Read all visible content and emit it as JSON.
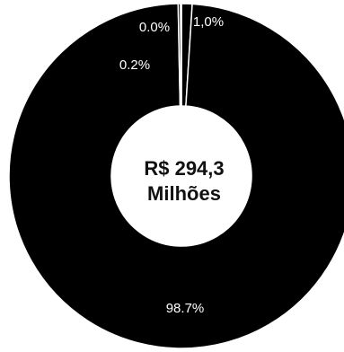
{
  "chart_data": {
    "type": "pie",
    "donut": true,
    "title": "",
    "center_label": [
      "R$ 294,3",
      "Milhões"
    ],
    "slices": [
      {
        "value": 98.7,
        "label": "98.7%",
        "color": "#000000"
      },
      {
        "value": 0.2,
        "label": "0.2%",
        "color": "#000000"
      },
      {
        "value": 0.0,
        "label": "0.0%",
        "color": "#000000"
      },
      {
        "value": 1.0,
        "label": "1,0%",
        "color": "#000000"
      }
    ],
    "separator_color": "#ffffff",
    "background": "#ffffff"
  }
}
